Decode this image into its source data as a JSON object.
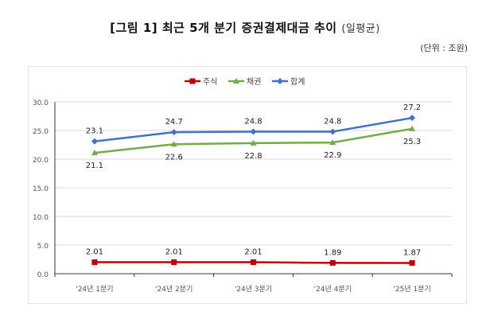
{
  "title": "[그림 1] 최근 5개 분기 증권결제대금 추이",
  "title_sub": "(일평균)",
  "unit": "(단위 : 조원)",
  "chart_data": {
    "type": "line",
    "title": "[그림 1] 최근 5개 분기 증권결제대금 추이 (일평균)",
    "xlabel": "",
    "ylabel": "",
    "ylim": [
      0,
      30
    ],
    "yticks": [
      0,
      5,
      10,
      15,
      20,
      25,
      30
    ],
    "ytick_labels": [
      "0.0",
      "5.0",
      "10.0",
      "15.0",
      "20.0",
      "25.0",
      "30.0"
    ],
    "grid": true,
    "legend": "top-center",
    "categories": [
      "'24년 1분기",
      "'24년 2분기",
      "'24년 3분기",
      "'24년 4분기",
      "'25년 1분기"
    ],
    "series": [
      {
        "name": "주식",
        "color": "#c00000",
        "marker": "square",
        "values": [
          2.01,
          2.01,
          2.01,
          1.89,
          1.87
        ],
        "labels": [
          "2.01",
          "2.01",
          "2.01",
          "1.89",
          "1.87"
        ],
        "label_pos": "above"
      },
      {
        "name": "채권",
        "color": "#70ad47",
        "marker": "triangle",
        "values": [
          21.1,
          22.6,
          22.8,
          22.9,
          25.3
        ],
        "labels": [
          "21.1",
          "22.6",
          "22.8",
          "22.9",
          "25.3"
        ],
        "label_pos": "below"
      },
      {
        "name": "합계",
        "color": "#4472c4",
        "marker": "diamond",
        "values": [
          23.1,
          24.7,
          24.8,
          24.8,
          27.2
        ],
        "labels": [
          "23.1",
          "24.7",
          "24.8",
          "24.8",
          "27.2"
        ],
        "label_pos": "above"
      }
    ]
  }
}
